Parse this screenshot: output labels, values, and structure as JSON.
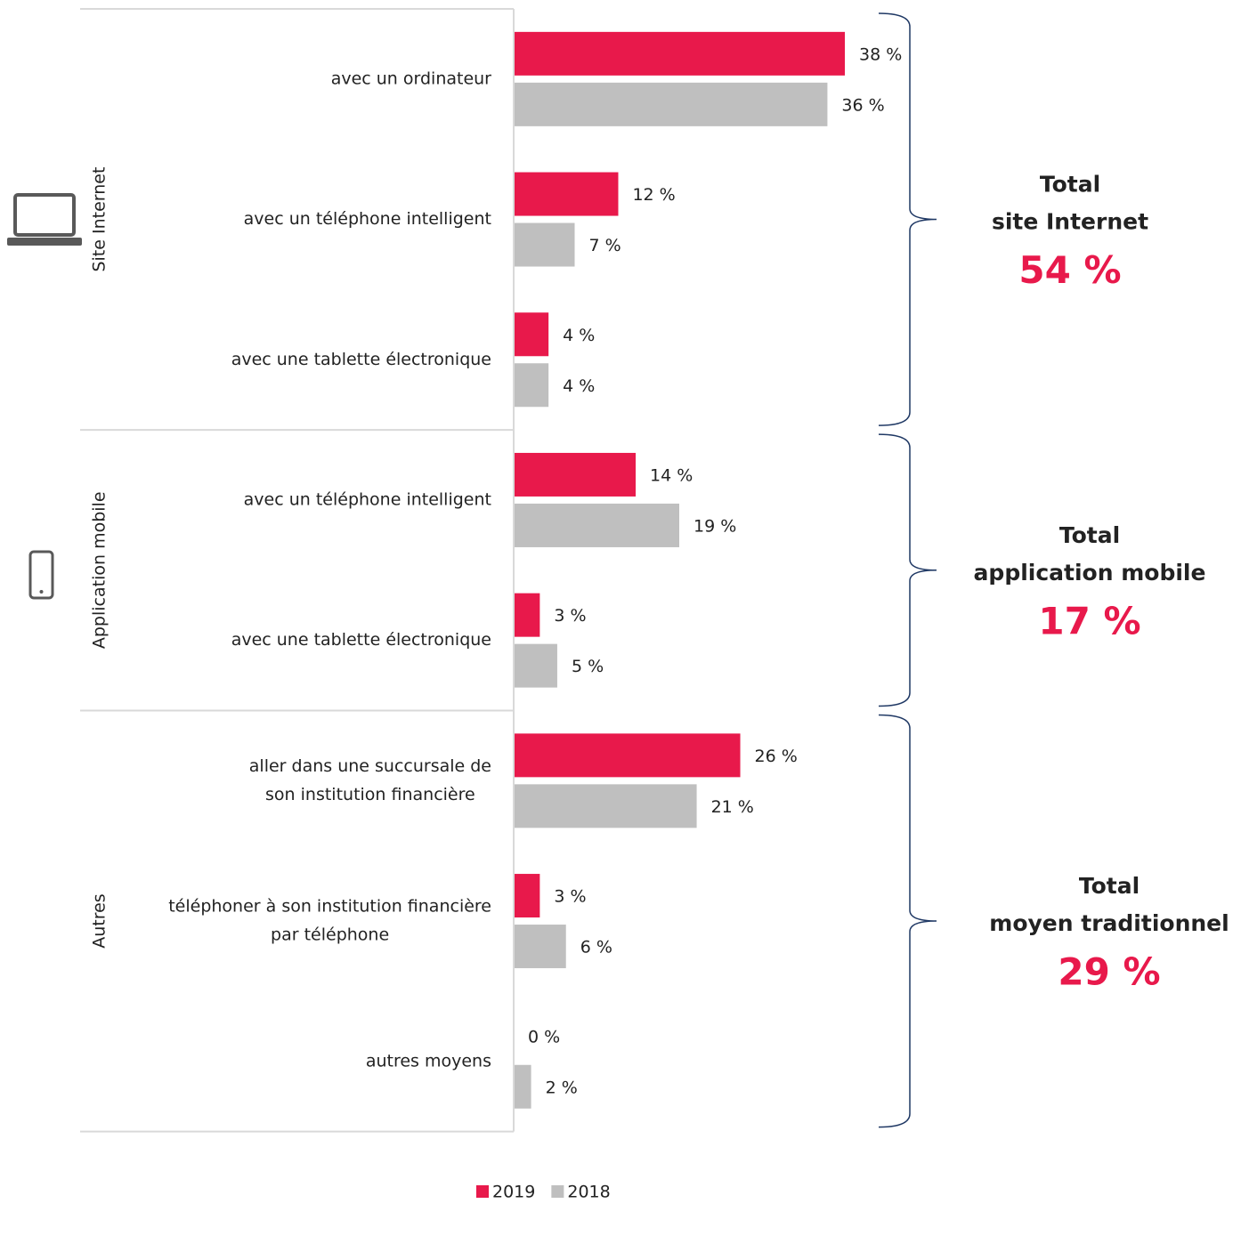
{
  "chart_data": {
    "type": "bar",
    "groups": [
      {
        "name": "Site Internet",
        "categories": [
          [
            "avec un ordinateur"
          ],
          [
            "avec un téléphone intelligent"
          ],
          [
            "avec une tablette électronique"
          ]
        ],
        "total_title": [
          "Total",
          "site Internet"
        ],
        "total": 54,
        "total_label": "54 %"
      },
      {
        "name": "Application mobile",
        "categories": [
          [
            "avec un téléphone intelligent"
          ],
          [
            "avec une tablette électronique"
          ]
        ],
        "total_title": [
          "Total",
          "application mobile"
        ],
        "total": 17,
        "total_label": "17 %"
      },
      {
        "name": "Autres",
        "categories": [
          [
            "aller dans une succursale de",
            "son institution financière"
          ],
          [
            "téléphoner à son institution financière",
            "par téléphone"
          ],
          [
            "autres moyens"
          ]
        ],
        "total_title": [
          "Total",
          "moyen traditionnel"
        ],
        "total": 29,
        "total_label": "29 %"
      }
    ],
    "series": [
      {
        "name": "2019",
        "color": "#e8194b",
        "values": [
          38,
          12,
          4,
          14,
          3,
          26,
          3,
          0
        ],
        "value_labels": [
          "38 %",
          "12 %",
          "4 %",
          "14 %",
          "3 %",
          "26 %",
          "3 %",
          "0 %"
        ]
      },
      {
        "name": "2018",
        "color": "#bfbfbf",
        "values": [
          36,
          7,
          4,
          19,
          5,
          21,
          6,
          2
        ],
        "value_labels": [
          "36 %",
          "7 %",
          "4 %",
          "19 %",
          "5 %",
          "21 %",
          "6 %",
          "2 %"
        ]
      }
    ],
    "xlim": [
      0,
      38
    ]
  }
}
